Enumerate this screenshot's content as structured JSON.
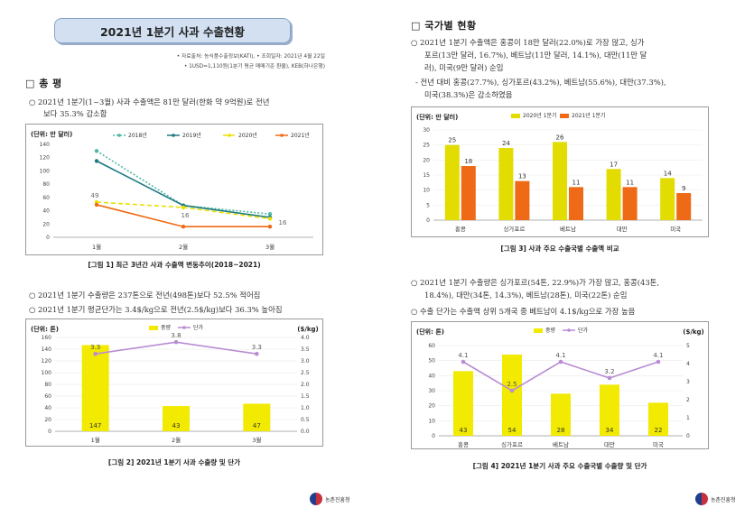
{
  "left": {
    "title": "2021년 1분기 사과 수출현황",
    "meta1": "• 자료출처: 농식품수출정보(KATI), • 조회일자: 2021년 4월 22일",
    "meta2": "• 1USD=1,110원(1분기 평균 매매기준 환율), KEB(하나은행)",
    "section": "□ 총   평",
    "b1_line1": "○ 2021년 1분기(1~3월) 사과 수출액은 81만 달러(한화 약 9억원)로 전년",
    "b1_line2": "보다 35.3% 감소함",
    "caption1": "[그림 1] 최근 3년간 사과 수출액 변동추이(2018~2021)",
    "b2": "○ 2021년 1분기 수출량은 237톤으로 전년(498톤)보다 52.5% 적어짐",
    "b3": "○ 2021년 1분기 평균단가는 3.4$/kg으로 전년(2.5$/kg)보다 36.3% 높아짐",
    "caption2": "[그림 2] 2021년 1분기 사과 수출량 및 단가"
  },
  "right": {
    "section": "□ 국가별 현황",
    "b1_line1": "○ 2021년 1분기 수출액은 홍콩이 18만 달러(22.0%)로 가장 많고, 싱가",
    "b1_line2": "포르(13만 달러, 16.7%), 베트남(11만 달러, 14.1%), 대만(11만 달",
    "b1_line3": "러), 미국(9만 달러) 순임",
    "b2_line1": "- 전년 대비 홍콩(27.7%), 싱가포르(43.2%), 베트남(55.6%), 대만(37.3%),",
    "b2_line2": "미국(38.3%)은 감소하였음",
    "caption3": "[그림 3] 사과 주요 수출국별 수출액 비교",
    "b3_line1": "○ 2021년 1분기 수출량은 싱가포르(54톤, 22.9%)가 가장 많고, 홍콩(43톤,",
    "b3_line2": "18.4%), 대만(34톤, 14.3%), 베트남(28톤), 미국(22톤) 순임",
    "b4": "○ 수출 단가는 수출액 상위 5개국 중 베트남이 4.1$/kg으로 가장 높음",
    "caption4": "[그림 4] 2021년 1분기 사과 주요 수출국별 수출량 및 단가"
  },
  "footer": {
    "org": "농촌진흥청"
  },
  "chart_data": [
    {
      "type": "line",
      "ylabel": "(단위: 만 달러)",
      "categories": [
        "1월",
        "2월",
        "3월"
      ],
      "ylim": [
        0,
        140
      ],
      "yticks": [
        0,
        20,
        40,
        60,
        80,
        100,
        120,
        140
      ],
      "legend": "top",
      "series": [
        {
          "name": "2018년",
          "values": [
            130,
            48,
            35
          ],
          "color": "#4fb8a8",
          "dash": "2,2"
        },
        {
          "name": "2019년",
          "values": [
            115,
            48,
            30
          ],
          "color": "#1f7a80",
          "dash": ""
        },
        {
          "name": "2020년",
          "values": [
            53,
            45,
            28
          ],
          "color": "#e8e000",
          "dash": "5,3"
        },
        {
          "name": "2021년",
          "values": [
            49,
            16,
            16
          ],
          "color": "#ee6a16",
          "dash": ""
        }
      ],
      "data_labels": {
        "series": "2021년",
        "values": [
          "49",
          "16",
          "16"
        ]
      }
    },
    {
      "type": "bar",
      "ylabel": "(단위: 톤)",
      "y2label": "($/kg)",
      "categories": [
        "1월",
        "2월",
        "3월"
      ],
      "ylim": [
        0,
        160
      ],
      "yticks": [
        0,
        20,
        40,
        60,
        80,
        100,
        120,
        140,
        160
      ],
      "y2lim": [
        0,
        4.0
      ],
      "y2ticks": [
        "0.0",
        "0.5",
        "1.0",
        "1.5",
        "2.0",
        "2.5",
        "3.0",
        "3.5",
        "4.0"
      ],
      "legend": "top",
      "series": [
        {
          "name": "중량",
          "values": [
            147,
            43,
            47
          ],
          "color": "#f2ea00",
          "axis": "left"
        },
        {
          "name": "단가",
          "values": [
            3.3,
            3.8,
            3.3
          ],
          "color": "#b98cd4",
          "axis": "right"
        }
      ]
    },
    {
      "type": "bar",
      "ylabel": "(단위: 만 달러)",
      "categories": [
        "홍콩",
        "싱가포르",
        "베트남",
        "대만",
        "미국"
      ],
      "ylim": [
        0,
        30
      ],
      "yticks": [
        0,
        5,
        10,
        15,
        20,
        25,
        30
      ],
      "legend": "top",
      "series": [
        {
          "name": "2020년 1분기",
          "values": [
            25,
            24,
            26,
            17,
            14
          ],
          "color": "#e2dc00"
        },
        {
          "name": "2021년 1분기",
          "values": [
            18,
            13,
            11,
            11,
            9
          ],
          "color": "#ee6a16"
        }
      ]
    },
    {
      "type": "bar",
      "ylabel": "(단위: 톤)",
      "y2label": "($/kg)",
      "categories": [
        "홍콩",
        "싱가포르",
        "베트남",
        "대만",
        "미국"
      ],
      "ylim": [
        0,
        60
      ],
      "yticks": [
        0,
        10,
        20,
        30,
        40,
        50,
        60
      ],
      "y2lim": [
        0,
        5
      ],
      "y2ticks": [
        "0",
        "1",
        "2",
        "3",
        "4",
        "5"
      ],
      "legend": "top",
      "series": [
        {
          "name": "중량",
          "values": [
            43,
            54,
            28,
            34,
            22
          ],
          "color": "#f2ea00",
          "axis": "left"
        },
        {
          "name": "단가",
          "values": [
            4.1,
            2.5,
            4.1,
            3.2,
            4.1
          ],
          "color": "#b98cd4",
          "axis": "right"
        }
      ]
    }
  ]
}
